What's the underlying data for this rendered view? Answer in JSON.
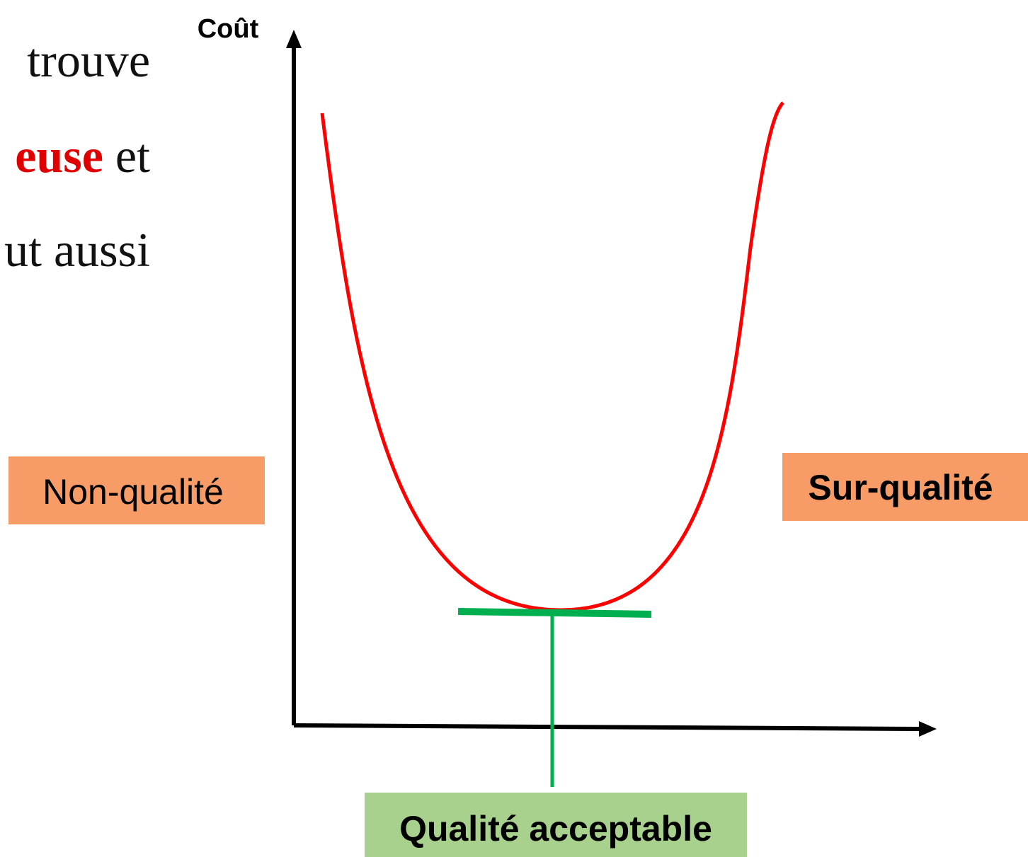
{
  "text_fragment": {
    "lines": [
      [
        {
          "text": "trouve"
        }
      ],
      [
        {
          "text": "euse",
          "emphasis": true
        },
        {
          "text": " et"
        }
      ],
      [
        {
          "text": "ut aussi"
        }
      ]
    ]
  },
  "diagram": {
    "y_axis_label": "Coût",
    "labels": {
      "left": "Non-qualité",
      "right": "Sur-qualité",
      "bottom": "Qualité acceptable"
    }
  }
}
